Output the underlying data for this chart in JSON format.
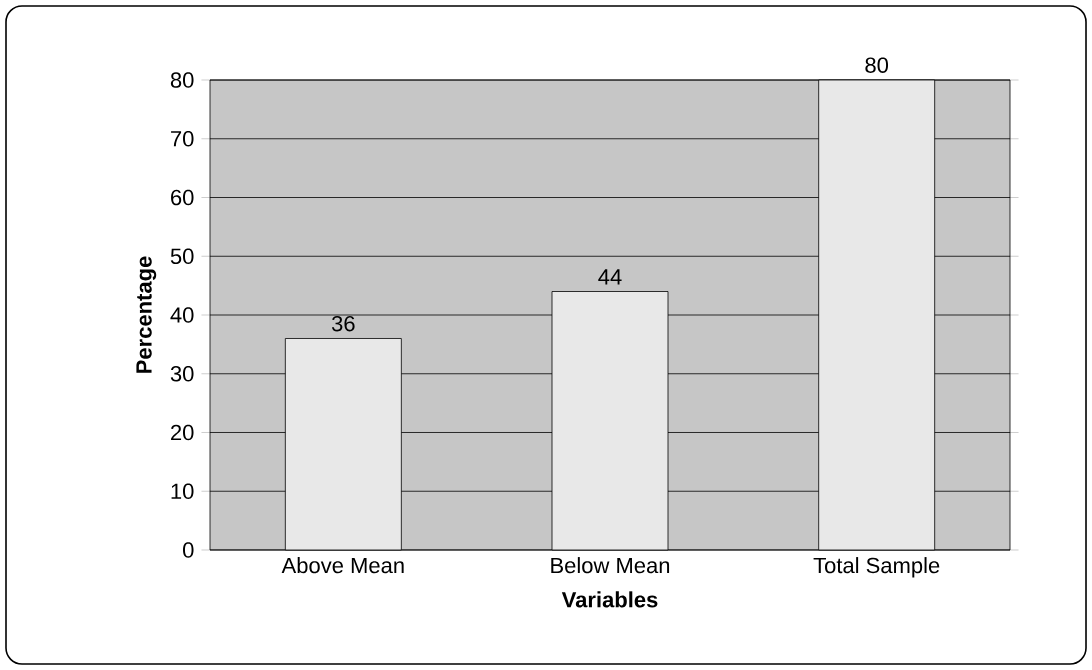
{
  "chart_data": {
    "type": "bar",
    "xlabel": "Variables",
    "ylabel": "Percentage",
    "categories": [
      "Above Mean",
      "Below Mean",
      "Total Sample"
    ],
    "values": [
      36,
      44,
      80
    ],
    "color": "#e8e8e8",
    "ylim": [
      0,
      80
    ],
    "yticks": [
      0,
      10,
      20,
      30,
      40,
      50,
      60,
      70,
      80
    ],
    "grid": "y",
    "data_labels": true
  }
}
